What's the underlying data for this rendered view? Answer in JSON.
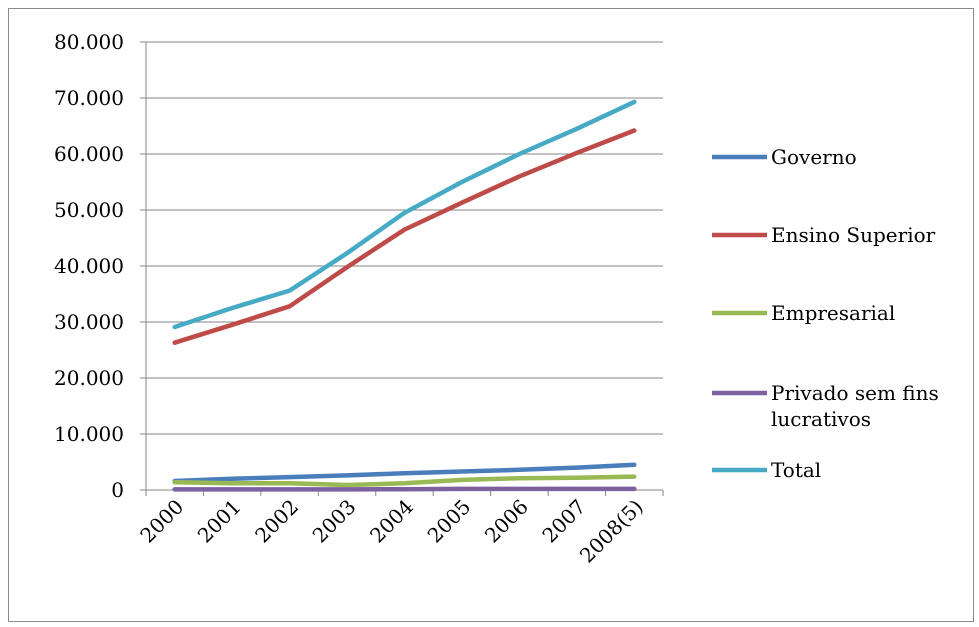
{
  "chart_data": {
    "type": "line",
    "title": "",
    "xlabel": "",
    "ylabel": "",
    "categories": [
      "2000",
      "2001",
      "2002",
      "2003",
      "2004",
      "2005",
      "2006",
      "2007",
      "2008(5)"
    ],
    "ylim": [
      0,
      80000
    ],
    "y_ticks": [
      {
        "value": 0,
        "label": "0"
      },
      {
        "value": 10000,
        "label": "10.000"
      },
      {
        "value": 20000,
        "label": "20.000"
      },
      {
        "value": 30000,
        "label": "30.000"
      },
      {
        "value": 40000,
        "label": "40.000"
      },
      {
        "value": 50000,
        "label": "50.000"
      },
      {
        "value": 60000,
        "label": "60.000"
      },
      {
        "value": 70000,
        "label": "70.000"
      },
      {
        "value": 80000,
        "label": "80.000"
      }
    ],
    "grid": true,
    "legend_position": "right",
    "series": [
      {
        "name": "Governo",
        "color": "#4a7ebb",
        "values": [
          1600,
          2000,
          2300,
          2600,
          3000,
          3300,
          3600,
          4000,
          4500
        ]
      },
      {
        "name": "Ensino Superior",
        "color": "#be4b48",
        "values": [
          26300,
          29500,
          32800,
          39800,
          46500,
          51300,
          56000,
          60200,
          64200
        ]
      },
      {
        "name": "Empresarial",
        "color": "#98b954",
        "values": [
          1400,
          1200,
          1200,
          900,
          1200,
          1800,
          2100,
          2200,
          2400
        ]
      },
      {
        "name": "Privado sem fins lucrativos",
        "label_lines": [
          "Privado sem fins",
          "lucrativos"
        ],
        "color": "#7d60a0",
        "values": [
          100,
          100,
          100,
          100,
          150,
          200,
          200,
          200,
          200
        ]
      },
      {
        "name": "Total",
        "color": "#46aac5",
        "values": [
          29100,
          32500,
          35600,
          42300,
          49500,
          55000,
          60000,
          64500,
          69300
        ]
      }
    ]
  }
}
